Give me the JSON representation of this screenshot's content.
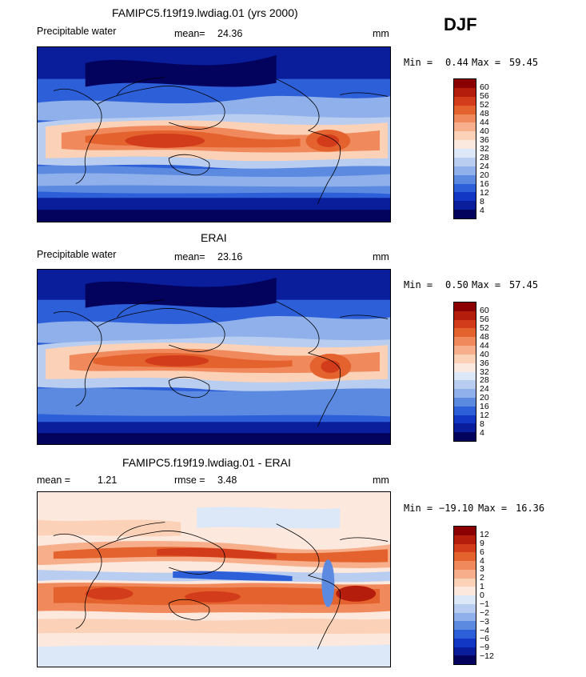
{
  "season": "DJF",
  "panels": [
    {
      "id": "model",
      "title": "FAMIPC5.f19f19.lwdiag.01 (yrs 2000)",
      "left_label": "Precipitable water",
      "stat1_label": "mean=",
      "stat1_value": "24.36",
      "units": "mm",
      "min_label": "Min =",
      "min_value": "0.44",
      "max_label": "Max =",
      "max_value": "59.45"
    },
    {
      "id": "obs",
      "title": "ERAI",
      "left_label": "Precipitable water",
      "stat1_label": "mean=",
      "stat1_value": "23.16",
      "units": "mm",
      "min_label": "Min =",
      "min_value": "0.50",
      "max_label": "Max =",
      "max_value": "57.45"
    },
    {
      "id": "diff",
      "title": "FAMIPC5.f19f19.lwdiag.01 - ERAI",
      "stat1_label": "mean =",
      "stat1_value": "1.21",
      "stat2_label": "rmse =",
      "stat2_value": "3.48",
      "units": "mm",
      "min_label": "Min =",
      "min_value": "−19.10",
      "max_label": "Max =",
      "max_value": "16.36"
    }
  ],
  "colorbar_abs": {
    "levels": [
      "60",
      "56",
      "52",
      "48",
      "44",
      "40",
      "36",
      "32",
      "28",
      "24",
      "20",
      "16",
      "12",
      "8",
      "4"
    ],
    "colors": [
      "#8b0000",
      "#b41c0c",
      "#d23c1a",
      "#e4622e",
      "#f08a5c",
      "#f7ae8a",
      "#fbd2b8",
      "#fbe8de",
      "#dce8f7",
      "#b8cdf0",
      "#8fb0ea",
      "#5b8ae0",
      "#2d5fd8",
      "#1237c4",
      "#0a1e9c",
      "#03035e"
    ]
  },
  "colorbar_diff": {
    "levels": [
      "12",
      "9",
      "6",
      "4",
      "3",
      "2",
      "1",
      "0",
      "−1",
      "−2",
      "−3",
      "−4",
      "−6",
      "−9",
      "−12"
    ],
    "colors": [
      "#8b0000",
      "#b41c0c",
      "#d23c1a",
      "#e4622e",
      "#f08a5c",
      "#f7ae8a",
      "#fbd2b8",
      "#fde8de",
      "#dce8f7",
      "#b8cdf0",
      "#8fb0ea",
      "#5b8ae0",
      "#2d5fd8",
      "#1237c4",
      "#0a1e9c",
      "#03035e"
    ]
  }
}
